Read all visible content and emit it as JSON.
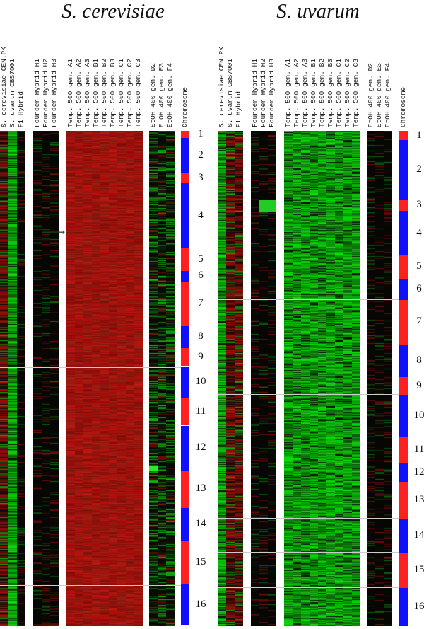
{
  "chart_data": {
    "type": "heatmap",
    "panels": [
      {
        "title": "S. cerevisiae",
        "columns": [
          {
            "label": "S. cerevisiae CEN.PK",
            "tone": "dark_red"
          },
          {
            "label": "S. uvarum CBS7001",
            "tone": "green"
          },
          {
            "label": "F1 Hybrid",
            "tone": "black"
          },
          {
            "label": "Founder Hybrid H1",
            "tone": "black"
          },
          {
            "label": "Founder Hybrid H2",
            "tone": "black"
          },
          {
            "label": "Founder Hybrid H3",
            "tone": "black"
          },
          {
            "label": "Temp. 500 gen. A1",
            "tone": "red"
          },
          {
            "label": "Temp. 500 gen. A2",
            "tone": "red"
          },
          {
            "label": "Temp. 500 gen. A3",
            "tone": "red"
          },
          {
            "label": "Temp. 500 gen. B1",
            "tone": "red"
          },
          {
            "label": "Temp. 500 gen. B2",
            "tone": "red"
          },
          {
            "label": "Temp. 500 gen. B3",
            "tone": "red"
          },
          {
            "label": "Temp. 500 gen. C1",
            "tone": "red"
          },
          {
            "label": "Temp. 500 gen. C2",
            "tone": "red"
          },
          {
            "label": "Temp. 500 gen. C3",
            "tone": "red"
          },
          {
            "label": "EtOH 400 gen. D2",
            "tone": "dark_green"
          },
          {
            "label": "EtOH 400 gen. E3",
            "tone": "dark_green"
          },
          {
            "label": "EtOH 400 gen. F4",
            "tone": "dark_green"
          }
        ],
        "chromosome_label": "Chromosome",
        "chromosomes": [
          {
            "label": "1",
            "fraction": 0.014
          },
          {
            "label": "2",
            "fraction": 0.071
          },
          {
            "label": "3",
            "fraction": 0.021
          },
          {
            "label": "4",
            "fraction": 0.131
          },
          {
            "label": "5",
            "fraction": 0.046
          },
          {
            "label": "6",
            "fraction": 0.021
          },
          {
            "label": "7",
            "fraction": 0.09
          },
          {
            "label": "8",
            "fraction": 0.044
          },
          {
            "label": "9",
            "fraction": 0.037
          },
          {
            "label": "10",
            "fraction": 0.063
          },
          {
            "label": "11",
            "fraction": 0.057
          },
          {
            "label": "12",
            "fraction": 0.09
          },
          {
            "label": "13",
            "fraction": 0.076
          },
          {
            "label": "14",
            "fraction": 0.066
          },
          {
            "label": "15",
            "fraction": 0.089
          },
          {
            "label": "16",
            "fraction": 0.083
          }
        ]
      },
      {
        "title": "S. uvarum",
        "columns": [
          {
            "label": "S. cerevisiae CEN.PK",
            "tone": "green"
          },
          {
            "label": "S. uvarum CBS7001",
            "tone": "dark_red"
          },
          {
            "label": "F1 Hybrid",
            "tone": "dark_red"
          },
          {
            "label": "Founder Hybrid H1",
            "tone": "black"
          },
          {
            "label": "Founder Hybrid H2",
            "tone": "black"
          },
          {
            "label": "Founder Hybrid H3",
            "tone": "black"
          },
          {
            "label": "Temp. 500 gen. A1",
            "tone": "green"
          },
          {
            "label": "Temp. 500 gen. A2",
            "tone": "green"
          },
          {
            "label": "Temp. 500 gen. A3",
            "tone": "green"
          },
          {
            "label": "Temp. 500 gen. B1",
            "tone": "green"
          },
          {
            "label": "Temp. 500 gen. B2",
            "tone": "green"
          },
          {
            "label": "Temp. 500 gen. B3",
            "tone": "green"
          },
          {
            "label": "Temp. 500 gen. C1",
            "tone": "green"
          },
          {
            "label": "Temp. 500 gen. C2",
            "tone": "green"
          },
          {
            "label": "Temp. 500 gen. C3",
            "tone": "green"
          },
          {
            "label": "EtOH 400 gen. D2",
            "tone": "black"
          },
          {
            "label": "EtOH 400 gen. E3",
            "tone": "black"
          },
          {
            "label": "EtOH 400 gen. F4",
            "tone": "black"
          }
        ],
        "chromosome_label": "Chromosome",
        "chromosomes": [
          {
            "label": "1",
            "fraction": 0.019
          },
          {
            "label": "2",
            "fraction": 0.12
          },
          {
            "label": "3",
            "fraction": 0.023
          },
          {
            "label": "4",
            "fraction": 0.089
          },
          {
            "label": "5",
            "fraction": 0.047
          },
          {
            "label": "6",
            "fraction": 0.043
          },
          {
            "label": "7",
            "fraction": 0.09
          },
          {
            "label": "8",
            "fraction": 0.066
          },
          {
            "label": "9",
            "fraction": 0.036
          },
          {
            "label": "10",
            "fraction": 0.086
          },
          {
            "label": "11",
            "fraction": 0.051
          },
          {
            "label": "12",
            "fraction": 0.039
          },
          {
            "label": "13",
            "fraction": 0.074
          },
          {
            "label": "14",
            "fraction": 0.069
          },
          {
            "label": "15",
            "fraction": 0.071
          },
          {
            "label": "16",
            "fraction": 0.077
          }
        ]
      }
    ],
    "colors": {
      "chrom_odd": "#ff2020",
      "chrom_even": "#1010ff"
    }
  }
}
